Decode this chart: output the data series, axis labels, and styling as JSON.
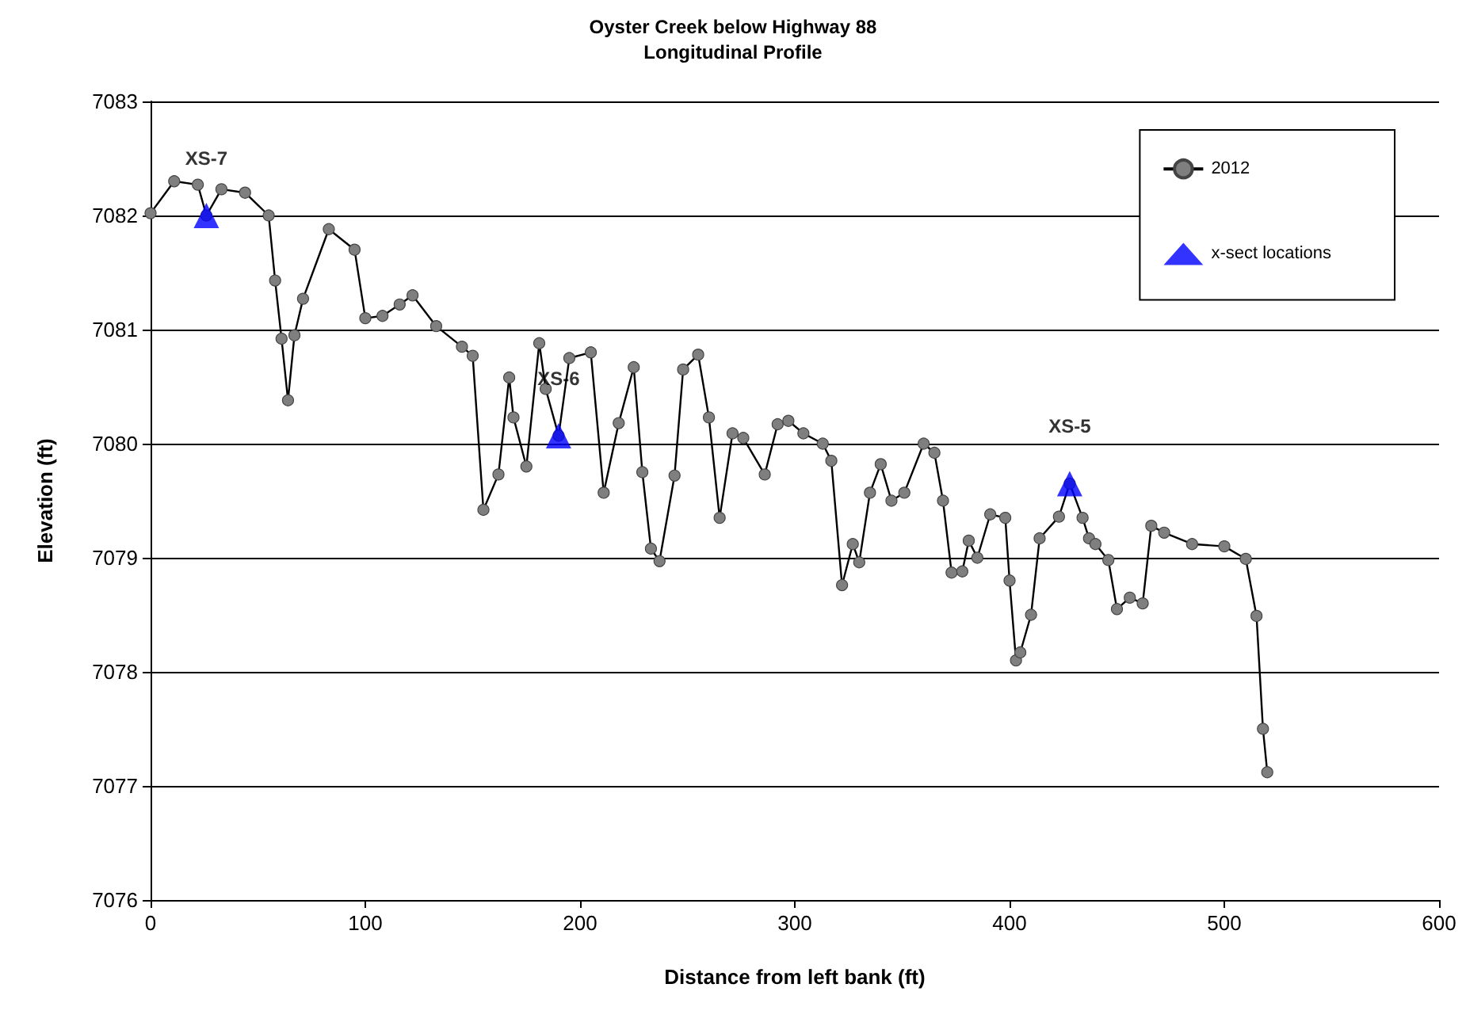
{
  "chart_data": {
    "type": "line",
    "title": "Oyster Creek below Highway 88",
    "subtitle": "Longitudinal Profile",
    "xlabel": "Distance from left bank (ft)",
    "ylabel": "Elevation (ft)",
    "xlim": [
      0,
      600
    ],
    "xticks": [
      0,
      100,
      200,
      300,
      400,
      500,
      600
    ],
    "ylim": [
      7076,
      7083
    ],
    "yticks": [
      7076,
      7077,
      7078,
      7079,
      7080,
      7081,
      7082,
      7083
    ],
    "grid": "y",
    "legend": "top right",
    "series": [
      {
        "name": "2012",
        "marker": "circle",
        "color": "#7f7f7f",
        "x": [
          0,
          11,
          22,
          26,
          33,
          44,
          55,
          58,
          61,
          64,
          67,
          71,
          83,
          95,
          100,
          108,
          116,
          122,
          133,
          145,
          150,
          155,
          162,
          167,
          169,
          175,
          181,
          184,
          190,
          195,
          205,
          211,
          218,
          225,
          229,
          233,
          237,
          244,
          248,
          255,
          260,
          265,
          271,
          276,
          286,
          292,
          297,
          304,
          313,
          317,
          322,
          327,
          330,
          335,
          340,
          345,
          351,
          360,
          365,
          369,
          373,
          378,
          381,
          385,
          391,
          398,
          400,
          403,
          405,
          410,
          414,
          423,
          428,
          434,
          437,
          440,
          446,
          450,
          456,
          462,
          466,
          472,
          485,
          500,
          510,
          515,
          518,
          520
        ],
        "values": [
          7082.02,
          7082.3,
          7082.27,
          7082.0,
          7082.23,
          7082.2,
          7082.0,
          7081.43,
          7080.92,
          7080.38,
          7080.95,
          7081.27,
          7081.88,
          7081.7,
          7081.1,
          7081.12,
          7081.22,
          7081.3,
          7081.03,
          7080.85,
          7080.77,
          7079.42,
          7079.73,
          7080.58,
          7080.23,
          7079.8,
          7080.88,
          7080.48,
          7080.07,
          7080.75,
          7080.8,
          7079.57,
          7080.18,
          7080.67,
          7079.75,
          7079.08,
          7078.97,
          7079.72,
          7080.65,
          7080.78,
          7080.23,
          7079.35,
          7080.09,
          7080.05,
          7079.73,
          7080.17,
          7080.2,
          7080.09,
          7080.0,
          7079.85,
          7078.76,
          7079.12,
          7078.96,
          7079.57,
          7079.82,
          7079.5,
          7079.57,
          7080.0,
          7079.92,
          7079.5,
          7078.87,
          7078.88,
          7079.15,
          7079.0,
          7079.38,
          7079.35,
          7078.8,
          7078.1,
          7078.17,
          7078.5,
          7079.17,
          7079.36,
          7079.65,
          7079.35,
          7079.17,
          7079.12,
          7078.98,
          7078.55,
          7078.65,
          7078.6,
          7079.28,
          7079.22,
          7079.12,
          7079.1,
          7078.99,
          7078.49,
          7077.5,
          7077.12
        ]
      },
      {
        "name": "x-sect locations",
        "type": "scatter",
        "marker": "triangle",
        "color": "#0000ff",
        "x": [
          26,
          190,
          428
        ],
        "values": [
          7082.0,
          7080.07,
          7079.65
        ]
      }
    ],
    "annotations": [
      {
        "text": "XS-7",
        "x": 26,
        "y": 7082.0
      },
      {
        "text": "XS-6",
        "x": 190,
        "y": 7080.07
      },
      {
        "text": "XS-5",
        "x": 428,
        "y": 7079.65
      }
    ]
  }
}
